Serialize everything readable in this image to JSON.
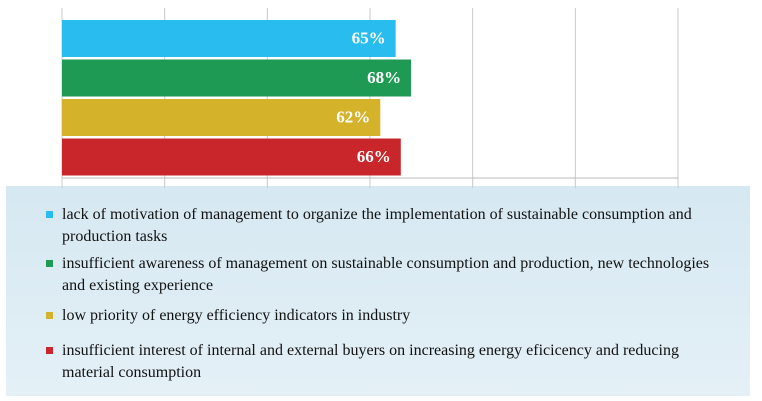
{
  "chart_data": {
    "type": "barh",
    "categories": [
      "lack of motivation of management to organize the implementation of sustainable consumption and production tasks",
      "insufficient awareness of management on sustainable consumption and production, new technologies and existing experience",
      "low priority of energy efficiency indicators in industry",
      "insufficient interest of internal and external buyers on increasing energy eficicency and reducing material consumption"
    ],
    "values": [
      65,
      68,
      62,
      66
    ],
    "value_labels": [
      "65%",
      "68%",
      "62%",
      "66%"
    ],
    "colors": [
      "#29bdef",
      "#1e9a55",
      "#d4b22a",
      "#c8262b"
    ],
    "xlim": [
      0,
      120
    ],
    "grid": true
  }
}
